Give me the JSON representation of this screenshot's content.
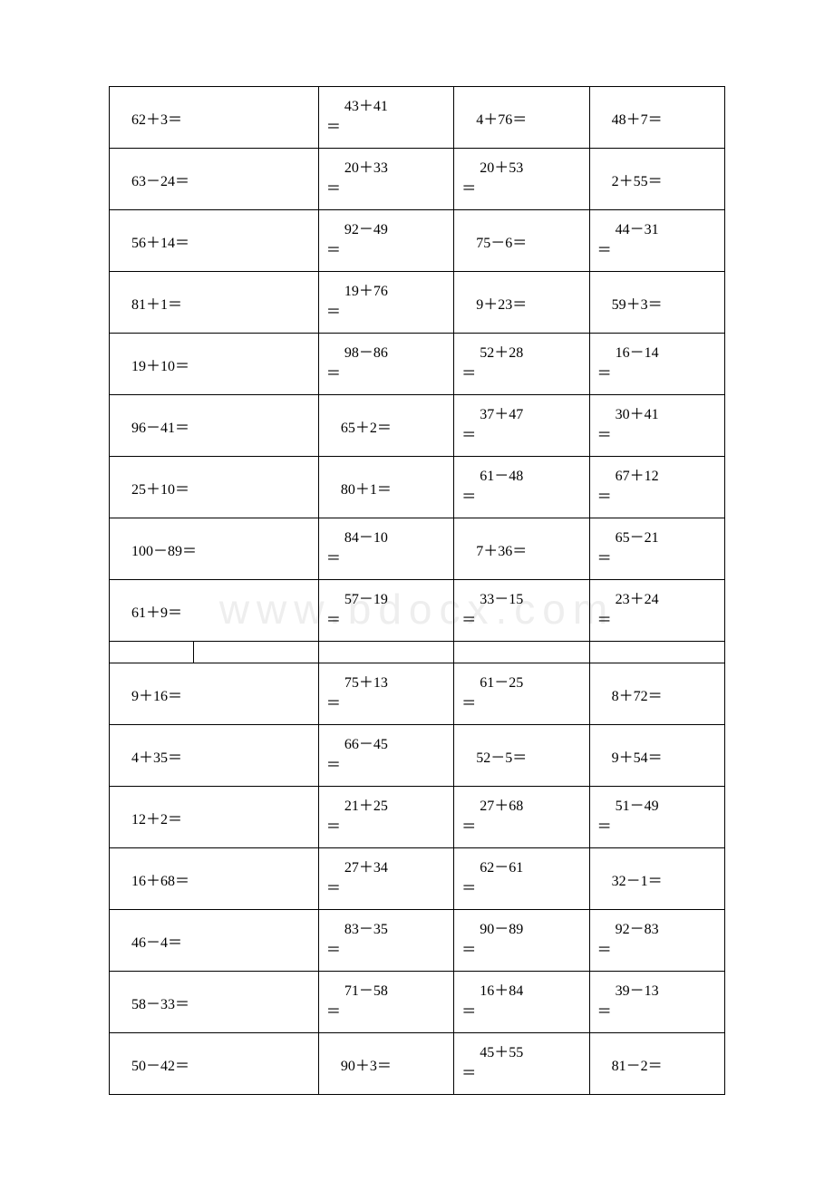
{
  "type": "table",
  "columns": 4,
  "text_color": "#000000",
  "border_color": "#000000",
  "background_color": "#ffffff",
  "fontsize": 16,
  "watermark": {
    "text": "www.bdocx.com",
    "color": "#eeeeee",
    "fontsize": 46
  },
  "rows_a": [
    [
      {
        "expr": "62＋3＝",
        "wrap": false
      },
      {
        "expr": "43＋41＝",
        "wrap": true
      },
      {
        "expr": "4＋76＝",
        "wrap": false
      },
      {
        "expr": "48＋7＝",
        "wrap": false
      }
    ],
    [
      {
        "expr": "63－24＝",
        "wrap": false
      },
      {
        "expr": "20＋33＝",
        "wrap": true
      },
      {
        "expr": "20＋53＝",
        "wrap": true
      },
      {
        "expr": "2＋55＝",
        "wrap": false
      }
    ],
    [
      {
        "expr": "56＋14＝",
        "wrap": false
      },
      {
        "expr": "92－49＝",
        "wrap": true
      },
      {
        "expr": "75－6＝",
        "wrap": false
      },
      {
        "expr": "44－31＝",
        "wrap": true
      }
    ],
    [
      {
        "expr": "81＋1＝",
        "wrap": false
      },
      {
        "expr": "19＋76＝",
        "wrap": true
      },
      {
        "expr": "9＋23＝",
        "wrap": false
      },
      {
        "expr": "59＋3＝",
        "wrap": false
      }
    ],
    [
      {
        "expr": "19＋10＝",
        "wrap": false
      },
      {
        "expr": "98－86＝",
        "wrap": true
      },
      {
        "expr": "52＋28＝",
        "wrap": true
      },
      {
        "expr": "16－14＝",
        "wrap": true
      }
    ],
    [
      {
        "expr": "96－41＝",
        "wrap": false
      },
      {
        "expr": "65＋2＝",
        "wrap": false
      },
      {
        "expr": "37＋47＝",
        "wrap": true
      },
      {
        "expr": "30＋41＝",
        "wrap": true
      }
    ],
    [
      {
        "expr": "25＋10＝",
        "wrap": false
      },
      {
        "expr": "80＋1＝",
        "wrap": false
      },
      {
        "expr": "61－48＝",
        "wrap": true
      },
      {
        "expr": "67＋12＝",
        "wrap": true
      }
    ],
    [
      {
        "expr": "100－89＝",
        "wrap": false
      },
      {
        "expr": "84－10＝",
        "wrap": true
      },
      {
        "expr": "7＋36＝",
        "wrap": false
      },
      {
        "expr": "65－21＝",
        "wrap": true
      }
    ],
    [
      {
        "expr": "61＋9＝",
        "wrap": false
      },
      {
        "expr": "57－19＝",
        "wrap": true
      },
      {
        "expr": "33－15＝",
        "wrap": true
      },
      {
        "expr": "23＋24＝",
        "wrap": true
      }
    ]
  ],
  "rows_b": [
    [
      {
        "expr": "9＋16＝",
        "wrap": false
      },
      {
        "expr": "75＋13＝",
        "wrap": true
      },
      {
        "expr": "61－25＝",
        "wrap": true
      },
      {
        "expr": "8＋72＝",
        "wrap": false
      }
    ],
    [
      {
        "expr": "4＋35＝",
        "wrap": false
      },
      {
        "expr": "66－45＝",
        "wrap": true
      },
      {
        "expr": "52－5＝",
        "wrap": false
      },
      {
        "expr": "9＋54＝",
        "wrap": false
      }
    ],
    [
      {
        "expr": "12＋2＝",
        "wrap": false
      },
      {
        "expr": "21＋25＝",
        "wrap": true
      },
      {
        "expr": "27＋68＝",
        "wrap": true
      },
      {
        "expr": "51－49＝",
        "wrap": true
      }
    ],
    [
      {
        "expr": "16＋68＝",
        "wrap": false
      },
      {
        "expr": "27＋34＝",
        "wrap": true
      },
      {
        "expr": "62－61＝",
        "wrap": true
      },
      {
        "expr": "32－1＝",
        "wrap": false
      }
    ],
    [
      {
        "expr": "46－4＝",
        "wrap": false
      },
      {
        "expr": "83－35＝",
        "wrap": true
      },
      {
        "expr": "90－89＝",
        "wrap": true
      },
      {
        "expr": "92－83＝",
        "wrap": true
      }
    ],
    [
      {
        "expr": "58－33＝",
        "wrap": false
      },
      {
        "expr": "71－58＝",
        "wrap": true
      },
      {
        "expr": "16＋84＝",
        "wrap": true
      },
      {
        "expr": "39－13＝",
        "wrap": true
      }
    ],
    [
      {
        "expr": "50－42＝",
        "wrap": false
      },
      {
        "expr": "90＋3＝",
        "wrap": false
      },
      {
        "expr": "45＋55＝",
        "wrap": true
      },
      {
        "expr": "81－2＝",
        "wrap": false
      }
    ]
  ]
}
